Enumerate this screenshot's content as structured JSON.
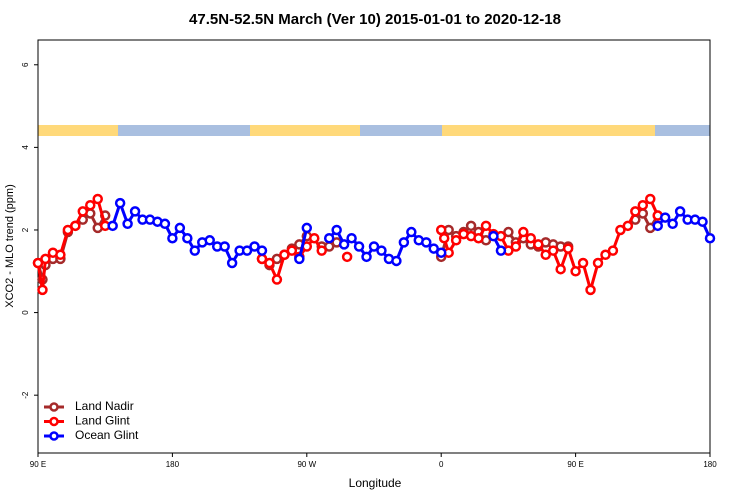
{
  "chart_data": {
    "type": "line",
    "title": "47.5N-52.5N March (Ver 10)   2015-01-01 to 2020-12-18",
    "x_label": "Longitude",
    "y_label": "XCO2 - MLO trend (ppm)",
    "xlim": [
      90,
      540
    ],
    "ylim": [
      -3.4,
      6.6
    ],
    "xticks": [
      {
        "value": 90,
        "label": "90 E"
      },
      180,
      {
        "value": 270,
        "label": "90 W"
      },
      {
        "value": 360,
        "label": "0"
      },
      {
        "value": 450,
        "label": "90 E"
      },
      {
        "value": 540,
        "label": "180"
      }
    ],
    "yticks": [
      -2,
      0,
      2,
      4,
      6
    ],
    "legend": "bottom-left",
    "series": [
      {
        "name": "Land Nadir",
        "color": "#a52a2a",
        "x": [
          90,
          93,
          95,
          100,
          105,
          110,
          115,
          120,
          125,
          130,
          135,
          180,
          240,
          245,
          250,
          255,
          260,
          265,
          270,
          275,
          280,
          285,
          290,
          300,
          360,
          365,
          370,
          375,
          380,
          385,
          390,
          400,
          405,
          410,
          415,
          420,
          425,
          430,
          435,
          440,
          445,
          470,
          490,
          495,
          500,
          505
        ],
        "values": [
          1.2,
          0.8,
          1.15,
          1.3,
          1.3,
          1.95,
          2.1,
          2.25,
          2.4,
          2.05,
          2.35,
          null,
          1.3,
          1.15,
          1.3,
          1.4,
          1.55,
          1.65,
          1.85,
          null,
          1.6,
          1.6,
          1.7,
          null,
          1.35,
          2.0,
          1.85,
          1.95,
          2.1,
          1.95,
          1.75,
          null,
          1.95,
          1.7,
          1.8,
          1.65,
          1.6,
          1.7,
          1.65,
          1.6,
          1.6,
          null,
          2.25,
          2.4,
          2.05,
          2.35
        ]
      },
      {
        "name": "Land Glint",
        "color": "#ff0000",
        "x": [
          90,
          93,
          95,
          100,
          105,
          110,
          115,
          120,
          125,
          130,
          135,
          180,
          240,
          245,
          250,
          255,
          260,
          265,
          270,
          275,
          280,
          290,
          297,
          330,
          360,
          362,
          365,
          370,
          375,
          380,
          385,
          390,
          395,
          400,
          405,
          410,
          415,
          420,
          425,
          430,
          435,
          440,
          445,
          450,
          455,
          460,
          465,
          470,
          475,
          480,
          485,
          490,
          495,
          500,
          505
        ],
        "values": [
          1.2,
          0.55,
          1.3,
          1.45,
          1.4,
          2.0,
          2.1,
          2.45,
          2.6,
          2.75,
          2.1,
          null,
          1.3,
          1.2,
          0.8,
          1.4,
          1.5,
          1.35,
          1.6,
          1.8,
          1.5,
          null,
          1.35,
          null,
          2.0,
          1.8,
          1.45,
          1.75,
          1.9,
          1.85,
          1.8,
          2.1,
          1.9,
          1.85,
          1.5,
          1.6,
          1.95,
          1.8,
          1.65,
          1.4,
          1.5,
          1.05,
          1.55,
          1.0,
          1.2,
          0.55,
          1.2,
          1.4,
          1.5,
          2.0,
          2.1,
          2.45,
          2.6,
          2.75,
          2.35
        ]
      },
      {
        "name": "Ocean Glint",
        "color": "#0000ff",
        "x": [
          140,
          145,
          150,
          155,
          160,
          165,
          170,
          175,
          180,
          185,
          190,
          195,
          200,
          205,
          210,
          215,
          220,
          225,
          230,
          235,
          240,
          252,
          265,
          270,
          278,
          285,
          290,
          295,
          300,
          305,
          310,
          315,
          320,
          325,
          330,
          335,
          340,
          345,
          350,
          355,
          360,
          380,
          395,
          400,
          450,
          505,
          510,
          515,
          520,
          525,
          530,
          535,
          540
        ],
        "values": [
          2.1,
          2.65,
          2.15,
          2.45,
          2.25,
          2.25,
          2.2,
          2.15,
          1.8,
          2.05,
          1.8,
          1.5,
          1.7,
          1.75,
          1.6,
          1.6,
          1.2,
          1.5,
          1.5,
          1.6,
          1.5,
          null,
          1.3,
          2.05,
          null,
          1.8,
          2.0,
          1.65,
          1.8,
          1.6,
          1.35,
          1.6,
          1.5,
          1.3,
          1.25,
          1.7,
          1.95,
          1.75,
          1.7,
          1.55,
          1.45,
          null,
          1.85,
          1.5,
          null,
          2.1,
          2.3,
          2.15,
          2.45,
          2.25,
          2.25,
          2.2,
          1.8
        ]
      }
    ]
  }
}
